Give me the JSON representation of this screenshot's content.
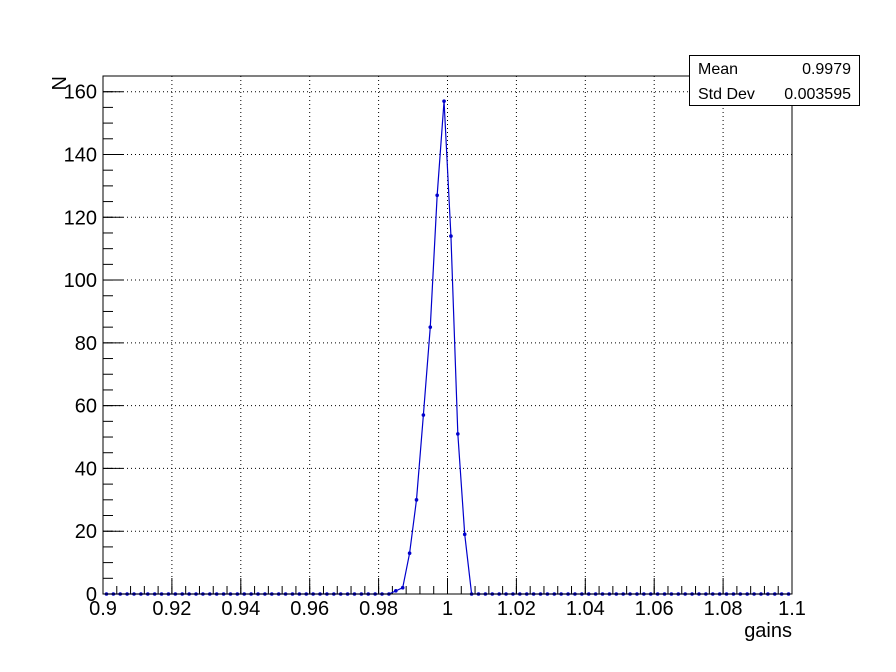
{
  "chart_data": {
    "type": "line",
    "xlabel": "gains",
    "ylabel": "N",
    "xlim": [
      0.9,
      1.1
    ],
    "ylim": [
      0,
      165
    ],
    "xticks": [
      "0.9",
      "0.92",
      "0.94",
      "0.96",
      "0.98",
      "1",
      "1.02",
      "1.04",
      "1.06",
      "1.08",
      "1.1"
    ],
    "yticks": [
      "0",
      "20",
      "40",
      "60",
      "80",
      "100",
      "120",
      "140",
      "160"
    ],
    "grid": true,
    "series": [
      {
        "color": "#0000cc",
        "x": [
          0.901,
          0.903,
          0.905,
          0.907,
          0.909,
          0.911,
          0.913,
          0.915,
          0.917,
          0.919,
          0.921,
          0.923,
          0.925,
          0.927,
          0.929,
          0.931,
          0.933,
          0.935,
          0.937,
          0.939,
          0.941,
          0.943,
          0.945,
          0.947,
          0.949,
          0.951,
          0.953,
          0.955,
          0.957,
          0.959,
          0.961,
          0.963,
          0.965,
          0.967,
          0.969,
          0.971,
          0.973,
          0.975,
          0.977,
          0.979,
          0.981,
          0.983,
          0.985,
          0.987,
          0.989,
          0.991,
          0.993,
          0.995,
          0.997,
          0.999,
          1.001,
          1.003,
          1.005,
          1.007,
          1.009,
          1.011,
          1.013,
          1.015,
          1.017,
          1.019,
          1.021,
          1.023,
          1.025,
          1.027,
          1.029,
          1.031,
          1.033,
          1.035,
          1.037,
          1.039,
          1.041,
          1.043,
          1.045,
          1.047,
          1.049,
          1.051,
          1.053,
          1.055,
          1.057,
          1.059,
          1.061,
          1.063,
          1.065,
          1.067,
          1.069,
          1.071,
          1.073,
          1.075,
          1.077,
          1.079,
          1.081,
          1.083,
          1.085,
          1.087,
          1.089,
          1.091,
          1.093,
          1.095,
          1.097,
          1.099
        ],
        "y": [
          0,
          0,
          0,
          0,
          0,
          0,
          0,
          0,
          0,
          0,
          0,
          0,
          0,
          0,
          0,
          0,
          0,
          0,
          0,
          0,
          0,
          0,
          0,
          0,
          0,
          0,
          0,
          0,
          0,
          0,
          0,
          0,
          0,
          0,
          0,
          0,
          0,
          0,
          0,
          0,
          0,
          0,
          1,
          2,
          13,
          30,
          57,
          85,
          127,
          157,
          114,
          51,
          19,
          0,
          0,
          0,
          0,
          0,
          0,
          0,
          0,
          0,
          0,
          0,
          0,
          0,
          0,
          0,
          0,
          0,
          0,
          0,
          0,
          0,
          0,
          0,
          0,
          0,
          0,
          0,
          0,
          0,
          0,
          0,
          0,
          0,
          0,
          0,
          0,
          0,
          0,
          0,
          0,
          0,
          0,
          0,
          0,
          0,
          0,
          0
        ]
      }
    ],
    "stats": [
      {
        "label": "Mean",
        "value": "0.9979"
      },
      {
        "label": "Std Dev",
        "value": "0.003595"
      }
    ]
  }
}
